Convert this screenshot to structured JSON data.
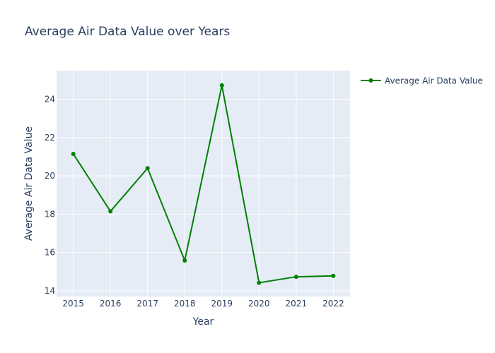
{
  "chart_data": {
    "type": "line",
    "title": "Average Air Data Value over Years",
    "xlabel": "Year",
    "ylabel": "Average Air Data Value",
    "x": [
      2015,
      2016,
      2017,
      2018,
      2019,
      2020,
      2021,
      2022
    ],
    "series": [
      {
        "name": "Average Air Data Value",
        "values": [
          21.15,
          18.15,
          20.4,
          15.58,
          24.73,
          14.42,
          14.73,
          14.78
        ],
        "color": "#008000"
      }
    ],
    "xlim": [
      2014.55,
      2022.45
    ],
    "ylim": [
      13.7,
      25.5
    ],
    "yticks": [
      14,
      16,
      18,
      20,
      22,
      24
    ],
    "xticks": [
      2015,
      2016,
      2017,
      2018,
      2019,
      2020,
      2021,
      2022
    ],
    "grid": true,
    "legend_position": "top-right",
    "plot_background": "#e5ecf6"
  }
}
